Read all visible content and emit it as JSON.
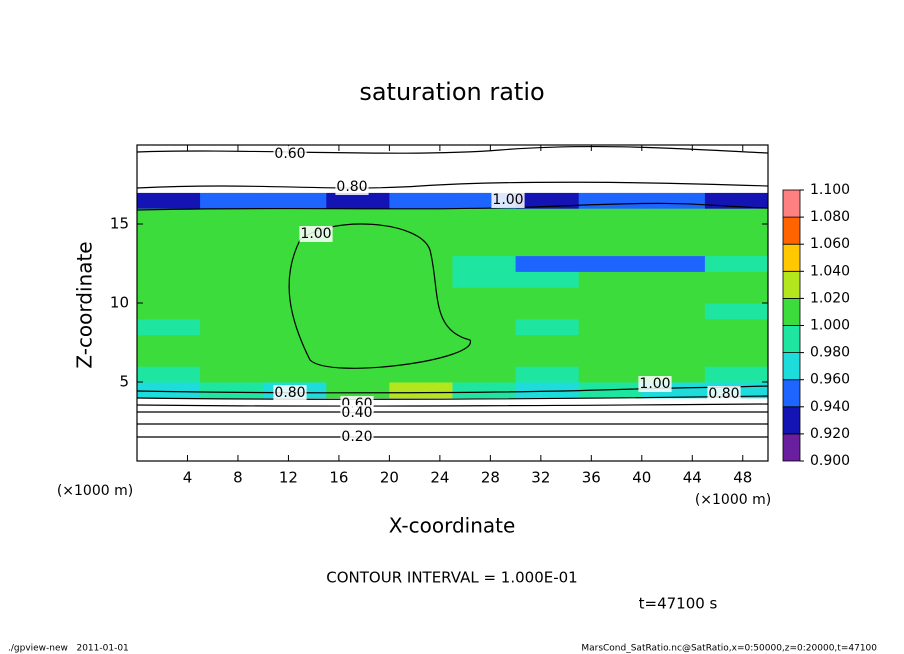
{
  "chart_data": {
    "type": "contour",
    "title": "saturation ratio",
    "x_label": "X-coordinate",
    "y_label": "Z-coordinate",
    "x_unit": "(×1000 m)",
    "y_unit": "(×1000 m)",
    "xlim": [
      0,
      50
    ],
    "ylim": [
      0,
      20
    ],
    "xticks": [
      4,
      8,
      12,
      16,
      20,
      24,
      28,
      32,
      36,
      40,
      44,
      48
    ],
    "yticks": [
      5,
      10,
      15
    ],
    "x": [
      2.5,
      7.5,
      12.5,
      17.5,
      22.5,
      27.5,
      32.5,
      37.5,
      42.5,
      47.5
    ],
    "z_levels": [
      0.5,
      1.5,
      2.5,
      3.5,
      4.5,
      5.5,
      6.5,
      7.5,
      8.5,
      9.5,
      10.5,
      11.5,
      12.5,
      13.5,
      14.5,
      15.5,
      16.5,
      17.5,
      18.5,
      19.5
    ],
    "values": [
      [
        0.15,
        0.15,
        0.15,
        0.15,
        0.15,
        0.15,
        0.15,
        0.15,
        0.15,
        0.15
      ],
      [
        0.25,
        0.25,
        0.25,
        0.25,
        0.25,
        0.25,
        0.25,
        0.25,
        0.25,
        0.25
      ],
      [
        0.38,
        0.38,
        0.38,
        0.38,
        0.38,
        0.38,
        0.38,
        0.38,
        0.38,
        0.38
      ],
      [
        0.55,
        0.55,
        0.55,
        0.55,
        0.55,
        0.55,
        0.55,
        0.55,
        0.55,
        0.55
      ],
      [
        0.97,
        0.99,
        0.97,
        1.01,
        1.03,
        0.98,
        0.97,
        0.99,
        0.96,
        0.97
      ],
      [
        0.99,
        1.01,
        1.01,
        1.01,
        1.01,
        1.01,
        0.99,
        1.01,
        1.01,
        0.99
      ],
      [
        1.01,
        1.01,
        1.01,
        1.01,
        1.01,
        1.01,
        1.01,
        1.01,
        1.01,
        1.01
      ],
      [
        1.01,
        1.01,
        1.01,
        1.01,
        1.01,
        1.01,
        1.01,
        1.01,
        1.01,
        1.01
      ],
      [
        0.99,
        1.01,
        1.01,
        1.01,
        1.01,
        1.01,
        0.99,
        1.01,
        1.01,
        1.01
      ],
      [
        1.01,
        1.01,
        1.01,
        1.01,
        1.01,
        1.01,
        1.01,
        1.01,
        1.01,
        0.99
      ],
      [
        1.01,
        1.01,
        1.01,
        1.01,
        1.01,
        1.01,
        1.01,
        1.01,
        1.01,
        1.01
      ],
      [
        1.01,
        1.01,
        1.01,
        1.01,
        1.01,
        0.99,
        0.99,
        1.01,
        1.01,
        1.01
      ],
      [
        1.01,
        1.01,
        1.01,
        1.01,
        1.01,
        0.99,
        0.95,
        0.94,
        0.95,
        0.99
      ],
      [
        1.01,
        1.01,
        1.01,
        1.01,
        1.01,
        1.01,
        1.01,
        1.01,
        1.01,
        1.01
      ],
      [
        1.01,
        1.01,
        1.01,
        1.01,
        1.01,
        1.01,
        1.01,
        1.01,
        1.01,
        1.01
      ],
      [
        1.01,
        1.01,
        1.01,
        1.01,
        1.01,
        1.01,
        1.01,
        1.01,
        1.01,
        1.01
      ],
      [
        0.93,
        0.94,
        0.95,
        0.93,
        0.94,
        0.94,
        0.93,
        0.94,
        0.94,
        0.93
      ],
      [
        0.85,
        0.85,
        0.85,
        0.85,
        0.85,
        0.85,
        0.85,
        0.85,
        0.85,
        0.85
      ],
      [
        0.75,
        0.75,
        0.75,
        0.75,
        0.75,
        0.75,
        0.75,
        0.75,
        0.75,
        0.75
      ],
      [
        0.62,
        0.62,
        0.62,
        0.62,
        0.62,
        0.62,
        0.62,
        0.62,
        0.62,
        0.62
      ]
    ],
    "colorbar_levels": [
      {
        "value": 0.9,
        "label": "0.900"
      },
      {
        "value": 0.92,
        "label": "0.920"
      },
      {
        "value": 0.94,
        "label": "0.940"
      },
      {
        "value": 0.96,
        "label": "0.960"
      },
      {
        "value": 0.98,
        "label": "0.980"
      },
      {
        "value": 1.0,
        "label": "1.000"
      },
      {
        "value": 1.02,
        "label": "1.020"
      },
      {
        "value": 1.04,
        "label": "1.040"
      },
      {
        "value": 1.06,
        "label": "1.060"
      },
      {
        "value": 1.08,
        "label": "1.080"
      },
      {
        "value": 1.1,
        "label": "1.100"
      }
    ],
    "colorbar_colors": [
      "#6a1fa0",
      "#1414b4",
      "#1e64ff",
      "#1edcdc",
      "#1ee6a0",
      "#3cdc3c",
      "#b4e61e",
      "#ffc800",
      "#ff6400",
      "#ff8080"
    ],
    "contour_labels": [
      "0.60",
      "0.80",
      "1.00",
      "1.00",
      "1.00",
      "0.80",
      "0.80",
      "0.60",
      "0.40",
      "0.20"
    ],
    "contour_interval": "CONTOUR INTERVAL = 1.000E-01",
    "time_label": "t=47100 s",
    "footer_left": "./gpview-new   2011-01-01",
    "footer_right": "MarsCond_SatRatio.nc@SatRatio,x=0:50000,z=0:20000,t=47100"
  }
}
